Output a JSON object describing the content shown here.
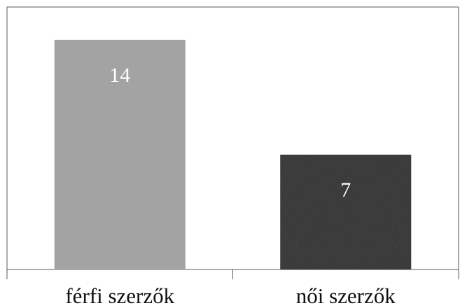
{
  "chart_data": {
    "type": "bar",
    "categories": [
      "férfi szerzők",
      "női szerzők"
    ],
    "values": [
      14,
      7
    ],
    "data_labels": [
      "14",
      "7"
    ],
    "colors": [
      "#a3a3a3",
      "#3a3a3a"
    ],
    "title": "",
    "xlabel": "",
    "ylabel": "",
    "ylim": [
      0,
      16
    ],
    "grid": false,
    "legend": "none"
  }
}
